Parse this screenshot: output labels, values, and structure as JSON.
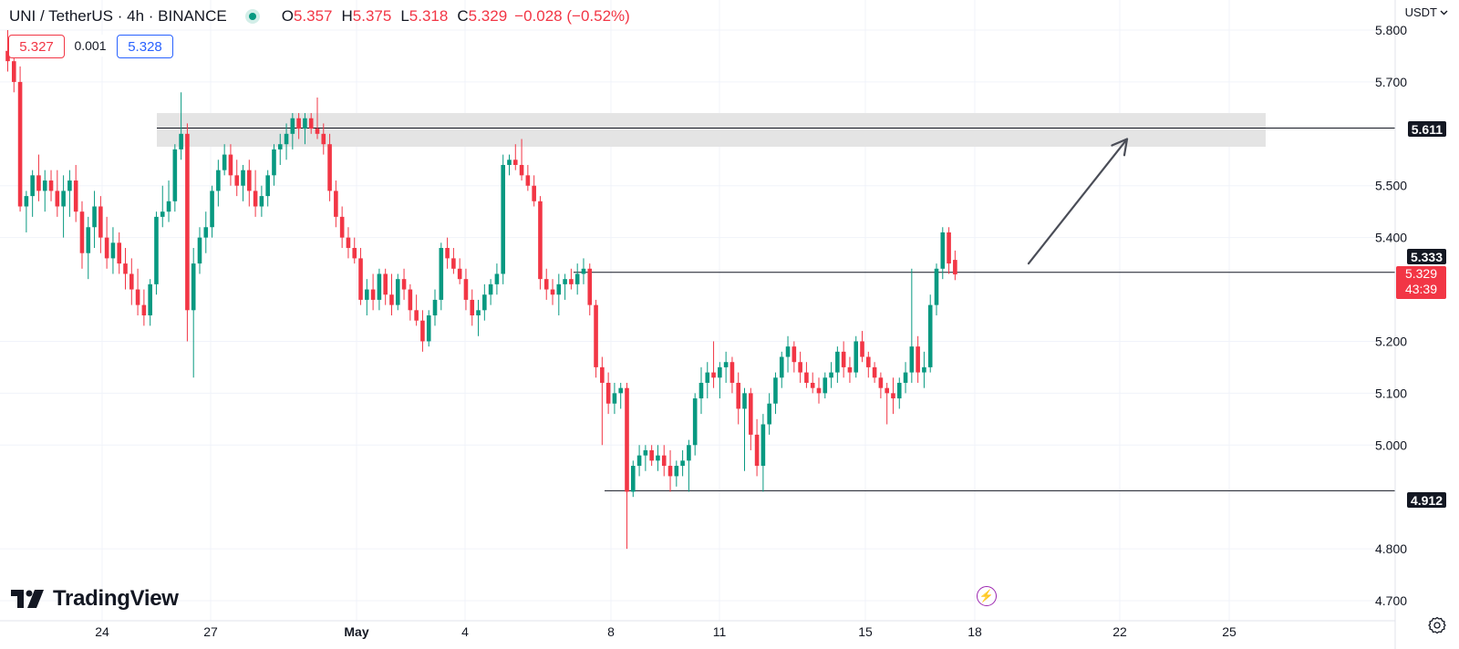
{
  "header": {
    "title": "UNI / TetherUS · 4h · BINANCE",
    "open_label": "O",
    "open": "5.357",
    "high_label": "H",
    "high": "5.375",
    "low_label": "L",
    "low": "5.318",
    "close_label": "C",
    "close": "5.329",
    "change": "−0.028 (−0.52%)"
  },
  "quote": {
    "bid": "5.327",
    "spread": "0.001",
    "ask": "5.328"
  },
  "currency": "USDT",
  "brand": "TradingView",
  "last_price": {
    "price": "5.329",
    "countdown": "43:39"
  },
  "line_labels": {
    "resistance": "5.611",
    "mid": "5.333",
    "support": "4.912"
  },
  "colors": {
    "up": "#089981",
    "down": "#f23645",
    "zone": "#e4e4e4",
    "arrow": "#4a4d57",
    "ask": "#2962ff"
  },
  "chart_data": {
    "type": "candlestick",
    "ylim": [
      4.68,
      5.84
    ],
    "y_ticks": [
      "5.800",
      "5.700",
      "5.500",
      "5.400",
      "5.200",
      "5.100",
      "5.000",
      "4.800",
      "4.700"
    ],
    "x_ticks": [
      "24",
      "27",
      "May",
      "4",
      "8",
      "11",
      "15",
      "18",
      "22",
      "25"
    ],
    "resistance_zone": [
      5.575,
      5.64
    ],
    "horizontal_lines": [
      5.611,
      5.333,
      4.912
    ],
    "arrow": {
      "from": [
        5.35
      ],
      "to": [
        5.59
      ]
    },
    "candles": [
      [
        5.76,
        5.8,
        5.72,
        5.74
      ],
      [
        5.74,
        5.76,
        5.68,
        5.7
      ],
      [
        5.7,
        5.73,
        5.45,
        5.46
      ],
      [
        5.46,
        5.49,
        5.41,
        5.48
      ],
      [
        5.48,
        5.53,
        5.44,
        5.52
      ],
      [
        5.52,
        5.56,
        5.47,
        5.49
      ],
      [
        5.49,
        5.53,
        5.45,
        5.51
      ],
      [
        5.51,
        5.53,
        5.47,
        5.49
      ],
      [
        5.49,
        5.53,
        5.44,
        5.46
      ],
      [
        5.46,
        5.52,
        5.4,
        5.49
      ],
      [
        5.49,
        5.53,
        5.44,
        5.51
      ],
      [
        5.51,
        5.54,
        5.43,
        5.45
      ],
      [
        5.45,
        5.47,
        5.34,
        5.37
      ],
      [
        5.37,
        5.44,
        5.32,
        5.42
      ],
      [
        5.42,
        5.49,
        5.38,
        5.46
      ],
      [
        5.46,
        5.48,
        5.37,
        5.4
      ],
      [
        5.4,
        5.44,
        5.34,
        5.36
      ],
      [
        5.36,
        5.42,
        5.33,
        5.39
      ],
      [
        5.39,
        5.41,
        5.33,
        5.35
      ],
      [
        5.35,
        5.38,
        5.3,
        5.33
      ],
      [
        5.33,
        5.36,
        5.27,
        5.3
      ],
      [
        5.3,
        5.34,
        5.25,
        5.27
      ],
      [
        5.27,
        5.3,
        5.23,
        5.25
      ],
      [
        5.25,
        5.32,
        5.23,
        5.31
      ],
      [
        5.31,
        5.45,
        5.29,
        5.44
      ],
      [
        5.44,
        5.5,
        5.42,
        5.45
      ],
      [
        5.45,
        5.51,
        5.43,
        5.47
      ],
      [
        5.47,
        5.58,
        5.45,
        5.57
      ],
      [
        5.57,
        5.68,
        5.55,
        5.6
      ],
      [
        5.6,
        5.62,
        5.2,
        5.26
      ],
      [
        5.26,
        5.38,
        5.13,
        5.35
      ],
      [
        5.35,
        5.42,
        5.33,
        5.4
      ],
      [
        5.4,
        5.45,
        5.37,
        5.42
      ],
      [
        5.42,
        5.5,
        5.4,
        5.49
      ],
      [
        5.49,
        5.55,
        5.46,
        5.53
      ],
      [
        5.53,
        5.58,
        5.52,
        5.56
      ],
      [
        5.56,
        5.58,
        5.5,
        5.52
      ],
      [
        5.52,
        5.55,
        5.48,
        5.5
      ],
      [
        5.5,
        5.54,
        5.47,
        5.53
      ],
      [
        5.53,
        5.55,
        5.46,
        5.49
      ],
      [
        5.49,
        5.53,
        5.44,
        5.46
      ],
      [
        5.46,
        5.5,
        5.44,
        5.48
      ],
      [
        5.48,
        5.53,
        5.46,
        5.52
      ],
      [
        5.52,
        5.58,
        5.5,
        5.57
      ],
      [
        5.57,
        5.6,
        5.54,
        5.58
      ],
      [
        5.58,
        5.62,
        5.55,
        5.6
      ],
      [
        5.6,
        5.64,
        5.57,
        5.63
      ],
      [
        5.63,
        5.64,
        5.59,
        5.61
      ],
      [
        5.61,
        5.64,
        5.58,
        5.63
      ],
      [
        5.63,
        5.64,
        5.6,
        5.61
      ],
      [
        5.61,
        5.67,
        5.59,
        5.6
      ],
      [
        5.6,
        5.62,
        5.56,
        5.58
      ],
      [
        5.58,
        5.6,
        5.47,
        5.49
      ],
      [
        5.49,
        5.51,
        5.42,
        5.44
      ],
      [
        5.44,
        5.46,
        5.38,
        5.4
      ],
      [
        5.4,
        5.42,
        5.36,
        5.38
      ],
      [
        5.38,
        5.4,
        5.35,
        5.36
      ],
      [
        5.36,
        5.38,
        5.27,
        5.28
      ],
      [
        5.28,
        5.32,
        5.25,
        5.3
      ],
      [
        5.3,
        5.33,
        5.26,
        5.28
      ],
      [
        5.28,
        5.34,
        5.26,
        5.33
      ],
      [
        5.33,
        5.34,
        5.27,
        5.29
      ],
      [
        5.29,
        5.33,
        5.25,
        5.27
      ],
      [
        5.27,
        5.33,
        5.26,
        5.32
      ],
      [
        5.32,
        5.34,
        5.28,
        5.3
      ],
      [
        5.3,
        5.31,
        5.24,
        5.26
      ],
      [
        5.26,
        5.29,
        5.23,
        5.24
      ],
      [
        5.24,
        5.26,
        5.18,
        5.2
      ],
      [
        5.2,
        5.26,
        5.19,
        5.25
      ],
      [
        5.25,
        5.3,
        5.23,
        5.28
      ],
      [
        5.28,
        5.39,
        5.26,
        5.38
      ],
      [
        5.38,
        5.4,
        5.34,
        5.36
      ],
      [
        5.36,
        5.38,
        5.33,
        5.34
      ],
      [
        5.34,
        5.36,
        5.31,
        5.32
      ],
      [
        5.32,
        5.34,
        5.26,
        5.28
      ],
      [
        5.28,
        5.3,
        5.23,
        5.25
      ],
      [
        5.25,
        5.28,
        5.21,
        5.26
      ],
      [
        5.26,
        5.31,
        5.24,
        5.29
      ],
      [
        5.29,
        5.32,
        5.27,
        5.31
      ],
      [
        5.31,
        5.35,
        5.29,
        5.33
      ],
      [
        5.33,
        5.56,
        5.31,
        5.54
      ],
      [
        5.54,
        5.56,
        5.52,
        5.55
      ],
      [
        5.55,
        5.58,
        5.53,
        5.54
      ],
      [
        5.54,
        5.59,
        5.51,
        5.52
      ],
      [
        5.52,
        5.54,
        5.49,
        5.5
      ],
      [
        5.5,
        5.52,
        5.46,
        5.47
      ],
      [
        5.47,
        5.48,
        5.3,
        5.32
      ],
      [
        5.32,
        5.34,
        5.28,
        5.3
      ],
      [
        5.3,
        5.32,
        5.27,
        5.29
      ],
      [
        5.29,
        5.33,
        5.25,
        5.31
      ],
      [
        5.31,
        5.33,
        5.28,
        5.32
      ],
      [
        5.32,
        5.34,
        5.3,
        5.31
      ],
      [
        5.31,
        5.35,
        5.29,
        5.33
      ],
      [
        5.33,
        5.36,
        5.31,
        5.34
      ],
      [
        5.34,
        5.35,
        5.25,
        5.27
      ],
      [
        5.27,
        5.28,
        5.13,
        5.15
      ],
      [
        5.15,
        5.17,
        5.0,
        5.12
      ],
      [
        5.12,
        5.14,
        5.06,
        5.08
      ],
      [
        5.08,
        5.12,
        5.06,
        5.1
      ],
      [
        5.1,
        5.12,
        5.07,
        5.11
      ],
      [
        5.11,
        5.12,
        4.8,
        4.91
      ],
      [
        4.91,
        4.97,
        4.9,
        4.96
      ],
      [
        4.96,
        5.0,
        4.94,
        4.98
      ],
      [
        4.98,
        5.0,
        4.95,
        4.99
      ],
      [
        4.99,
        5.0,
        4.96,
        4.97
      ],
      [
        4.97,
        5.0,
        4.95,
        4.98
      ],
      [
        4.98,
        5.0,
        4.94,
        4.96
      ],
      [
        4.96,
        4.99,
        4.91,
        4.94
      ],
      [
        4.94,
        4.97,
        4.92,
        4.96
      ],
      [
        4.96,
        4.99,
        4.94,
        4.97
      ],
      [
        4.97,
        5.01,
        4.91,
        5.0
      ],
      [
        5.0,
        5.1,
        4.98,
        5.09
      ],
      [
        5.09,
        5.15,
        5.06,
        5.12
      ],
      [
        5.12,
        5.16,
        5.09,
        5.14
      ],
      [
        5.14,
        5.2,
        5.11,
        5.13
      ],
      [
        5.13,
        5.16,
        5.09,
        5.15
      ],
      [
        5.15,
        5.18,
        5.12,
        5.16
      ],
      [
        5.16,
        5.17,
        5.1,
        5.12
      ],
      [
        5.12,
        5.14,
        5.04,
        5.07
      ],
      [
        5.07,
        5.11,
        4.95,
        5.1
      ],
      [
        5.1,
        5.11,
        4.99,
        5.02
      ],
      [
        5.02,
        5.05,
        4.94,
        4.96
      ],
      [
        4.96,
        5.06,
        4.91,
        5.04
      ],
      [
        5.04,
        5.1,
        5.02,
        5.08
      ],
      [
        5.08,
        5.14,
        5.06,
        5.13
      ],
      [
        5.13,
        5.18,
        5.11,
        5.17
      ],
      [
        5.17,
        5.21,
        5.14,
        5.19
      ],
      [
        5.19,
        5.2,
        5.14,
        5.16
      ],
      [
        5.16,
        5.18,
        5.12,
        5.14
      ],
      [
        5.14,
        5.16,
        5.11,
        5.12
      ],
      [
        5.12,
        5.14,
        5.1,
        5.11
      ],
      [
        5.11,
        5.13,
        5.08,
        5.1
      ],
      [
        5.1,
        5.14,
        5.09,
        5.13
      ],
      [
        5.13,
        5.16,
        5.11,
        5.14
      ],
      [
        5.14,
        5.19,
        5.12,
        5.18
      ],
      [
        5.18,
        5.2,
        5.13,
        5.15
      ],
      [
        5.15,
        5.17,
        5.12,
        5.14
      ],
      [
        5.14,
        5.21,
        5.13,
        5.2
      ],
      [
        5.2,
        5.22,
        5.16,
        5.17
      ],
      [
        5.17,
        5.18,
        5.13,
        5.15
      ],
      [
        5.15,
        5.16,
        5.12,
        5.13
      ],
      [
        5.13,
        5.14,
        5.09,
        5.11
      ],
      [
        5.11,
        5.12,
        5.04,
        5.1
      ],
      [
        5.1,
        5.13,
        5.06,
        5.09
      ],
      [
        5.09,
        5.13,
        5.07,
        5.12
      ],
      [
        5.12,
        5.16,
        5.1,
        5.14
      ],
      [
        5.14,
        5.34,
        5.12,
        5.19
      ],
      [
        5.19,
        5.21,
        5.12,
        5.14
      ],
      [
        5.14,
        5.18,
        5.11,
        5.15
      ],
      [
        5.15,
        5.29,
        5.14,
        5.27
      ],
      [
        5.27,
        5.35,
        5.25,
        5.34
      ],
      [
        5.34,
        5.42,
        5.32,
        5.41
      ],
      [
        5.41,
        5.42,
        5.33,
        5.35
      ],
      [
        5.357,
        5.375,
        5.318,
        5.329
      ]
    ]
  }
}
